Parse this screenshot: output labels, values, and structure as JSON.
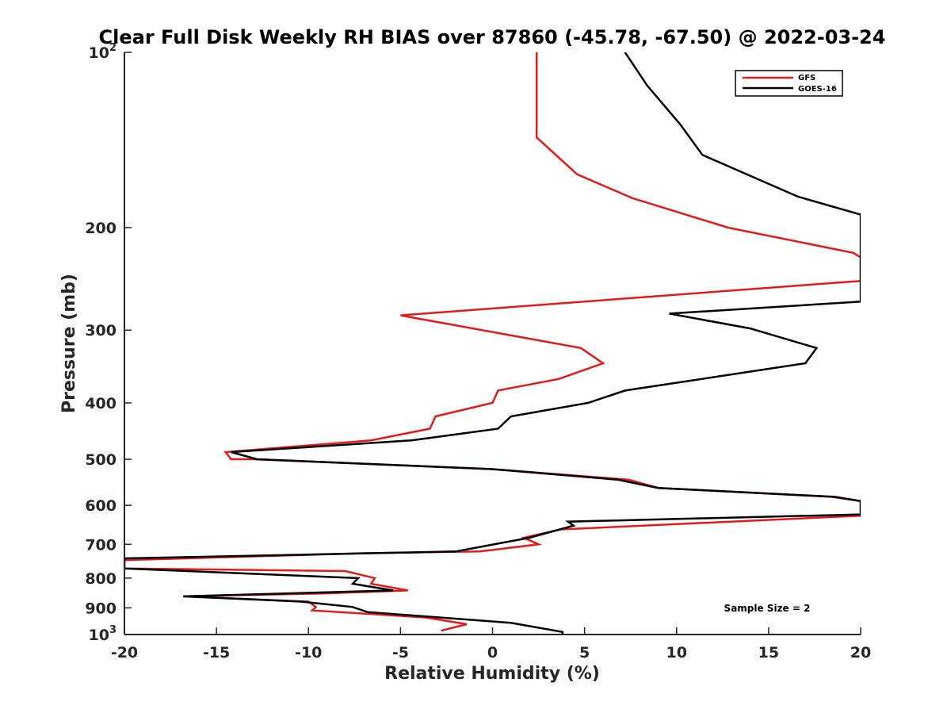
{
  "chart_data": {
    "type": "line",
    "title": "Clear Full Disk Weekly RH BIAS over 87860 (-45.78, -67.50) @ 2022-03-24",
    "xlabel": "Relative Humidity (%)",
    "ylabel": "Pressure (mb)",
    "xlim": [
      -20,
      20
    ],
    "ylim": [
      100,
      1000
    ],
    "y_scale": "log",
    "y_reversed": true,
    "grid": false,
    "legend_position": "top-right",
    "annotation": "Sample Size = 2",
    "x_ticks": [
      {
        "value": -20,
        "label": "-20"
      },
      {
        "value": -15,
        "label": "-15"
      },
      {
        "value": -10,
        "label": "-10"
      },
      {
        "value": -5,
        "label": "-5"
      },
      {
        "value": 0,
        "label": "0"
      },
      {
        "value": 5,
        "label": "5"
      },
      {
        "value": 10,
        "label": "10"
      },
      {
        "value": 15,
        "label": "15"
      },
      {
        "value": 20,
        "label": "20"
      }
    ],
    "y_ticks": [
      {
        "value": 100,
        "label": "10",
        "sup": "2"
      },
      {
        "value": 200,
        "label": "200"
      },
      {
        "value": 300,
        "label": "300"
      },
      {
        "value": 400,
        "label": "400"
      },
      {
        "value": 500,
        "label": "500"
      },
      {
        "value": 600,
        "label": "600"
      },
      {
        "value": 700,
        "label": "700"
      },
      {
        "value": 800,
        "label": "800"
      },
      {
        "value": 900,
        "label": "900"
      },
      {
        "value": 1000,
        "label": "10",
        "sup": "3"
      }
    ],
    "series": [
      {
        "name": "GFS",
        "color": "#e31a1c",
        "points": [
          {
            "x": 2.4,
            "p": 100
          },
          {
            "x": 2.4,
            "p": 140
          },
          {
            "x": 4.6,
            "p": 162
          },
          {
            "x": 7.6,
            "p": 178
          },
          {
            "x": 12.8,
            "p": 200
          },
          {
            "x": 19.6,
            "p": 221
          },
          {
            "x": 20,
            "p": 225
          },
          {
            "x": 20,
            "p": 247
          },
          {
            "x": -5,
            "p": 283
          },
          {
            "x": 4.8,
            "p": 322
          },
          {
            "x": 6.0,
            "p": 342
          },
          {
            "x": 3.6,
            "p": 364
          },
          {
            "x": 0.3,
            "p": 381
          },
          {
            "x": 0,
            "p": 400
          },
          {
            "x": -3.1,
            "p": 422
          },
          {
            "x": -3.4,
            "p": 443
          },
          {
            "x": -6.6,
            "p": 464
          },
          {
            "x": -14.5,
            "p": 486
          },
          {
            "x": -14.2,
            "p": 500
          },
          {
            "x": -13.0,
            "p": 500
          },
          {
            "x": 0,
            "p": 520
          },
          {
            "x": 7.4,
            "p": 542
          },
          {
            "x": 9.0,
            "p": 560
          },
          {
            "x": 18.4,
            "p": 580
          },
          {
            "x": 20,
            "p": 590
          },
          {
            "x": 20,
            "p": 625
          },
          {
            "x": 3.7,
            "p": 660
          },
          {
            "x": 1.7,
            "p": 682
          },
          {
            "x": 2.5,
            "p": 700
          },
          {
            "x": -0.7,
            "p": 720
          },
          {
            "x": -7.0,
            "p": 725
          },
          {
            "x": -20,
            "p": 745
          },
          {
            "x": -20,
            "p": 770
          },
          {
            "x": -8.0,
            "p": 778
          },
          {
            "x": -6.4,
            "p": 800
          },
          {
            "x": -6.6,
            "p": 818
          },
          {
            "x": -4.6,
            "p": 840
          },
          {
            "x": -9.2,
            "p": 850
          },
          {
            "x": -16.8,
            "p": 860
          },
          {
            "x": -10.0,
            "p": 878
          },
          {
            "x": -9.6,
            "p": 897
          },
          {
            "x": -9.8,
            "p": 909
          },
          {
            "x": -3.6,
            "p": 935
          },
          {
            "x": -1.4,
            "p": 960
          },
          {
            "x": -2.8,
            "p": 985
          }
        ]
      },
      {
        "name": "GOES-16",
        "color": "#000000",
        "points": [
          {
            "x": 7.2,
            "p": 100
          },
          {
            "x": 8.4,
            "p": 114
          },
          {
            "x": 10.2,
            "p": 133
          },
          {
            "x": 11.4,
            "p": 150
          },
          {
            "x": 16.6,
            "p": 177
          },
          {
            "x": 20,
            "p": 190
          },
          {
            "x": 20,
            "p": 268
          },
          {
            "x": 9.6,
            "p": 281
          },
          {
            "x": 14.0,
            "p": 298
          },
          {
            "x": 17.6,
            "p": 322
          },
          {
            "x": 17.0,
            "p": 342
          },
          {
            "x": 7.2,
            "p": 381
          },
          {
            "x": 5.2,
            "p": 400
          },
          {
            "x": 1.0,
            "p": 422
          },
          {
            "x": 0.3,
            "p": 443
          },
          {
            "x": -4.4,
            "p": 464
          },
          {
            "x": -14.2,
            "p": 486
          },
          {
            "x": -12.8,
            "p": 500
          },
          {
            "x": 0,
            "p": 520
          },
          {
            "x": 6.8,
            "p": 542
          },
          {
            "x": 9.0,
            "p": 560
          },
          {
            "x": 18.6,
            "p": 580
          },
          {
            "x": 20,
            "p": 590
          },
          {
            "x": 20,
            "p": 622
          },
          {
            "x": 4.1,
            "p": 640
          },
          {
            "x": 4.4,
            "p": 650
          },
          {
            "x": 2.0,
            "p": 682
          },
          {
            "x": -2.0,
            "p": 720
          },
          {
            "x": -20,
            "p": 740
          },
          {
            "x": -20,
            "p": 770
          },
          {
            "x": -7.3,
            "p": 800
          },
          {
            "x": -7.6,
            "p": 818
          },
          {
            "x": -5.4,
            "p": 840
          },
          {
            "x": -16.8,
            "p": 860
          },
          {
            "x": -10.4,
            "p": 878
          },
          {
            "x": -7.6,
            "p": 897
          },
          {
            "x": -6.8,
            "p": 915
          },
          {
            "x": 1.0,
            "p": 955
          },
          {
            "x": 3.8,
            "p": 990
          },
          {
            "x": 3.8,
            "p": 1000
          }
        ]
      }
    ]
  }
}
